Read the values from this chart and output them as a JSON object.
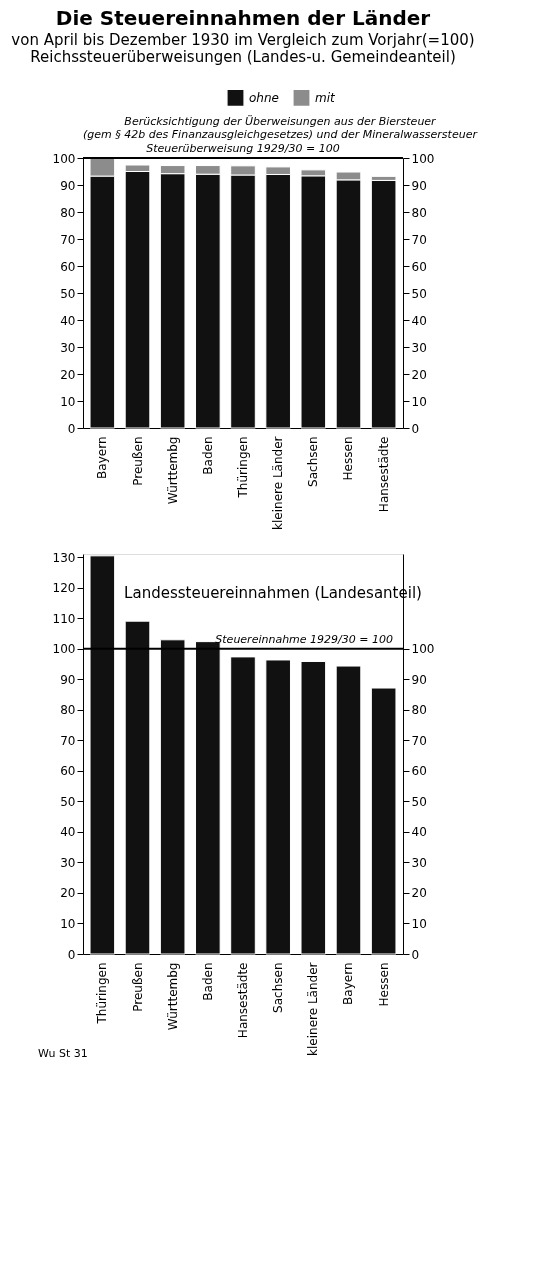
{
  "chart_data": [
    {
      "type": "bar",
      "title": "Die Steuereinnahmen der Länder",
      "subtitle": "von April bis Dezember 1930 im Vergleich zum Vorjahr(=100)",
      "annotations": [
        "Reichssteuerüberweisungen (Landes-u. Gemeindeanteil)"
      ],
      "legend_title": "Berücksichtigung der Überweisungen aus der Biersteuer\n(gem § 42b des Finanzausgleichgesetzes) und der Mineralwassersteuer",
      "categories": [
        "Bayern",
        "Preußen",
        "Württembg",
        "Baden",
        "Thüringen",
        "kleinere Länder",
        "Sachsen",
        "Hessen",
        "Hansestädte"
      ],
      "stacked": true,
      "series": [
        {
          "name": "ohne",
          "color": "#111111",
          "values": [
            93.3,
            95.0,
            94.2,
            94.0,
            93.7,
            93.9,
            93.4,
            91.9,
            91.7
          ]
        },
        {
          "name": "mit",
          "color": "#8c8c8c",
          "values": [
            6.7,
            2.4,
            3.0,
            3.2,
            3.4,
            2.8,
            2.2,
            2.9,
            1.5
          ]
        }
      ],
      "ylim": [
        0,
        100
      ],
      "yticks": [
        0,
        10,
        20,
        30,
        40,
        50,
        60,
        70,
        80,
        90,
        100
      ],
      "y2lim": [
        0,
        100
      ],
      "y2ticks": [
        0,
        10,
        20,
        30,
        40,
        50,
        60,
        70,
        80,
        90,
        100
      ],
      "ref_lines": [
        {
          "axis": "y",
          "value": 100,
          "label": "Steuerüberweisung 1929/30 = 100"
        }
      ],
      "grid": false,
      "legend": "top"
    },
    {
      "type": "bar",
      "title": "Landessteuereinnahmen (Landesanteil)",
      "annotations": [
        "Wu St 31"
      ],
      "categories": [
        "Thüringen",
        "Preußen",
        "Württembg",
        "Baden",
        "Hansestädte",
        "Sachsen",
        "kleinere Länder",
        "Bayern",
        "Hessen"
      ],
      "series": [
        {
          "color": "#111111",
          "values": [
            130.4,
            109.0,
            102.9,
            102.3,
            97.3,
            96.3,
            95.8,
            94.3,
            87.1
          ]
        }
      ],
      "ylim": [
        0,
        131
      ],
      "yticks": [
        0,
        10,
        20,
        30,
        40,
        50,
        60,
        70,
        80,
        90,
        100,
        110,
        120,
        130
      ],
      "y2lim": [
        0,
        131
      ],
      "y2ticks": [
        0,
        10,
        20,
        30,
        40,
        50,
        60,
        70,
        80,
        90,
        100
      ],
      "ref_lines": [
        {
          "axis": "y",
          "value": 100,
          "label": "Steuereinnahme 1929/30 = 100"
        }
      ],
      "grid": false
    }
  ]
}
